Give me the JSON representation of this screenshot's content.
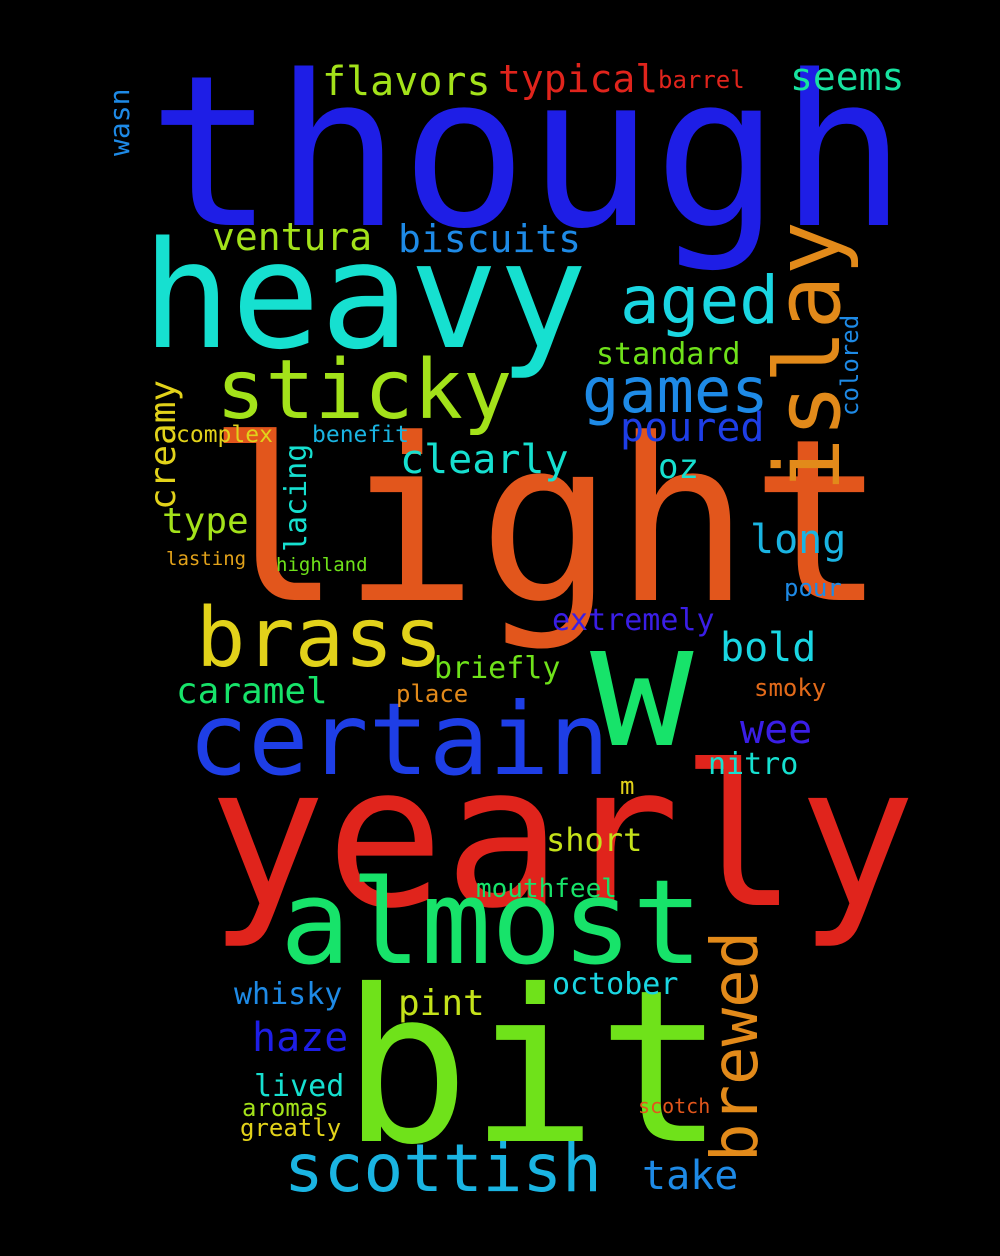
{
  "words": {
    "though": {
      "text": "though",
      "color": "#1e1ee6"
    },
    "heavy": {
      "text": "heavy",
      "color": "#16e0d0"
    },
    "light": {
      "text": "light",
      "color": "#e2561c"
    },
    "w": {
      "text": "w",
      "color": "#17e36a"
    },
    "yearly": {
      "text": "yearly",
      "color": "#e0241c"
    },
    "bit": {
      "text": "bit",
      "color": "#6fe21a"
    },
    "almost": {
      "text": "almost",
      "color": "#17e36a"
    },
    "certain": {
      "text": "certain",
      "color": "#1e3ee6"
    },
    "brass": {
      "text": "brass",
      "color": "#e2d21a"
    },
    "sticky": {
      "text": "sticky",
      "color": "#a3e21a"
    },
    "islay": {
      "text": "islay",
      "color": "#e28a1a"
    },
    "aged": {
      "text": "aged",
      "color": "#1ad6e2"
    },
    "games": {
      "text": "games",
      "color": "#1e8ae6"
    },
    "scottish": {
      "text": "scottish",
      "color": "#1ab4e2"
    },
    "brewed": {
      "text": "brewed",
      "color": "#e28a1a"
    },
    "flavors": {
      "text": "flavors",
      "color": "#a3e21a"
    },
    "typical": {
      "text": "typical",
      "color": "#e0241c"
    },
    "barrel": {
      "text": "barrel",
      "color": "#e0241c"
    },
    "seems": {
      "text": "seems",
      "color": "#17e3a0"
    },
    "wasn": {
      "text": "wasn",
      "color": "#1e8ae6"
    },
    "ventura": {
      "text": "ventura",
      "color": "#a3e21a"
    },
    "biscuits": {
      "text": "biscuits",
      "color": "#1e8ae6"
    },
    "standard": {
      "text": "standard",
      "color": "#6fe21a"
    },
    "colored": {
      "text": "colored",
      "color": "#1e8ae6"
    },
    "poured": {
      "text": "poured",
      "color": "#1e3ee6"
    },
    "creamy": {
      "text": "creamy",
      "color": "#e2d21a"
    },
    "complex": {
      "text": "complex",
      "color": "#e2d21a"
    },
    "lacing": {
      "text": "lacing",
      "color": "#16e0d0"
    },
    "benefit": {
      "text": "benefit",
      "color": "#1ab4e2"
    },
    "clearly": {
      "text": "clearly",
      "color": "#16e0d0"
    },
    "oz": {
      "text": "oz",
      "color": "#16e0d0"
    },
    "type": {
      "text": "type",
      "color": "#a3e21a"
    },
    "long": {
      "text": "long",
      "color": "#1ab4e2"
    },
    "lasting": {
      "text": "lasting",
      "color": "#e2a21a"
    },
    "highland": {
      "text": "highland",
      "color": "#6fe21a"
    },
    "pour": {
      "text": "pour",
      "color": "#1e8ae6"
    },
    "extremely": {
      "text": "extremely",
      "color": "#3a1ee6"
    },
    "bold": {
      "text": "bold",
      "color": "#1ad6e2"
    },
    "briefly": {
      "text": "briefly",
      "color": "#6fe21a"
    },
    "caramel": {
      "text": "caramel",
      "color": "#17e36a"
    },
    "place": {
      "text": "place",
      "color": "#e28a1a"
    },
    "smoky": {
      "text": "smoky",
      "color": "#e26a1a"
    },
    "wee": {
      "text": "wee",
      "color": "#3a1ee6"
    },
    "nitro": {
      "text": "nitro",
      "color": "#16e0d0"
    },
    "m": {
      "text": "m",
      "color": "#e2d21a"
    },
    "short": {
      "text": "short",
      "color": "#c4e21a"
    },
    "mouthfeel": {
      "text": "mouthfeel",
      "color": "#17e36a"
    },
    "october": {
      "text": "october",
      "color": "#1ad6e2"
    },
    "whisky": {
      "text": "whisky",
      "color": "#1e8ae6"
    },
    "pint": {
      "text": "pint",
      "color": "#c4e21a"
    },
    "haze": {
      "text": "haze",
      "color": "#1e1ee6"
    },
    "lived": {
      "text": "lived",
      "color": "#16e0d0"
    },
    "aromas": {
      "text": "aromas",
      "color": "#a3e21a"
    },
    "greatly": {
      "text": "greatly",
      "color": "#e2d21a"
    },
    "scotch": {
      "text": "scotch",
      "color": "#e2561c"
    },
    "take": {
      "text": "take",
      "color": "#1e8ae6"
    }
  }
}
